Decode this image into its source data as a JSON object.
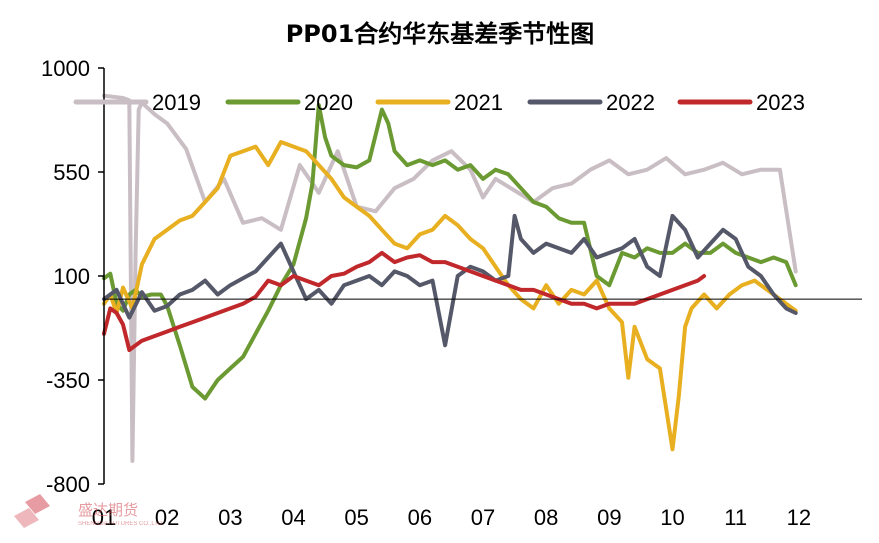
{
  "chart_data": {
    "type": "line",
    "title": "PP01合约华东基差季节性图",
    "xlabel": "",
    "ylabel": "",
    "ylim": [
      -800,
      1000
    ],
    "yticks": [
      1000,
      550,
      100,
      -350,
      -800
    ],
    "xticks": [
      "01",
      "02",
      "03",
      "04",
      "05",
      "06",
      "07",
      "08",
      "09",
      "10",
      "11",
      "12"
    ],
    "x_domain": [
      1,
      13
    ],
    "zero_line": 0,
    "legend_position": "top",
    "series": [
      {
        "name": "2019",
        "color": "#c9bec3",
        "x": [
          1.0,
          1.3,
          1.4,
          1.45,
          1.5,
          1.55,
          1.6,
          1.8,
          2.0,
          2.3,
          2.6,
          2.9,
          3.2,
          3.5,
          3.8,
          4.1,
          4.4,
          4.7,
          5.0,
          5.3,
          5.6,
          5.9,
          6.2,
          6.5,
          6.8,
          7.0,
          7.2,
          7.5,
          7.8,
          8.1,
          8.4,
          8.7,
          9.0,
          9.3,
          9.6,
          9.9,
          10.2,
          10.5,
          10.8,
          11.1,
          11.4,
          11.7,
          11.95
        ],
        "y": [
          880,
          870,
          860,
          -700,
          200,
          820,
          850,
          800,
          760,
          650,
          420,
          520,
          330,
          350,
          300,
          580,
          460,
          640,
          400,
          380,
          480,
          520,
          600,
          640,
          560,
          440,
          520,
          470,
          420,
          480,
          500,
          560,
          600,
          540,
          560,
          610,
          540,
          560,
          590,
          540,
          560,
          560,
          120
        ]
      },
      {
        "name": "2020",
        "color": "#6b9a33",
        "x": [
          1.0,
          1.1,
          1.2,
          1.3,
          1.4,
          1.5,
          1.6,
          1.75,
          1.9,
          2.0,
          2.2,
          2.4,
          2.6,
          2.8,
          3.0,
          3.2,
          3.4,
          3.6,
          3.8,
          4.0,
          4.2,
          4.3,
          4.4,
          4.5,
          4.6,
          4.8,
          5.0,
          5.2,
          5.4,
          5.5,
          5.6,
          5.8,
          6.0,
          6.2,
          6.4,
          6.6,
          6.8,
          7.0,
          7.2,
          7.4,
          7.6,
          7.8,
          8.0,
          8.2,
          8.4,
          8.6,
          8.8,
          9.0,
          9.2,
          9.4,
          9.6,
          9.8,
          10.0,
          10.2,
          10.4,
          10.6,
          10.8,
          11.0,
          11.2,
          11.4,
          11.6,
          11.8,
          11.95
        ],
        "y": [
          90,
          110,
          -20,
          -50,
          20,
          40,
          10,
          20,
          20,
          -30,
          -200,
          -380,
          -430,
          -350,
          -300,
          -250,
          -150,
          -50,
          60,
          150,
          350,
          500,
          840,
          700,
          620,
          580,
          570,
          600,
          820,
          760,
          640,
          580,
          600,
          580,
          600,
          560,
          580,
          520,
          560,
          540,
          480,
          420,
          400,
          350,
          330,
          330,
          100,
          60,
          200,
          180,
          220,
          200,
          200,
          240,
          200,
          200,
          240,
          200,
          180,
          160,
          180,
          160,
          60
        ]
      },
      {
        "name": "2021",
        "color": "#e8b020",
        "x": [
          1.0,
          1.1,
          1.2,
          1.3,
          1.45,
          1.6,
          1.8,
          2.0,
          2.2,
          2.4,
          2.6,
          2.8,
          3.0,
          3.2,
          3.4,
          3.6,
          3.8,
          4.0,
          4.2,
          4.4,
          4.6,
          4.8,
          5.0,
          5.2,
          5.4,
          5.6,
          5.8,
          6.0,
          6.2,
          6.4,
          6.6,
          6.8,
          7.0,
          7.2,
          7.4,
          7.6,
          7.8,
          8.0,
          8.2,
          8.4,
          8.6,
          8.8,
          9.0,
          9.2,
          9.3,
          9.4,
          9.6,
          9.8,
          10.0,
          10.1,
          10.2,
          10.3,
          10.5,
          10.7,
          10.9,
          11.1,
          11.3,
          11.5,
          11.7,
          11.95
        ],
        "y": [
          -20,
          20,
          -60,
          50,
          -40,
          150,
          260,
          300,
          340,
          360,
          420,
          480,
          620,
          640,
          660,
          580,
          680,
          660,
          640,
          580,
          520,
          440,
          400,
          360,
          300,
          240,
          220,
          280,
          300,
          360,
          320,
          260,
          220,
          140,
          60,
          0,
          -40,
          60,
          -20,
          40,
          20,
          80,
          -40,
          -100,
          -340,
          -120,
          -260,
          -300,
          -650,
          -420,
          -120,
          -40,
          20,
          -40,
          20,
          60,
          80,
          40,
          0,
          -50
        ]
      },
      {
        "name": "2022",
        "color": "#555868",
        "x": [
          1.0,
          1.2,
          1.4,
          1.6,
          1.8,
          2.0,
          2.2,
          2.4,
          2.6,
          2.8,
          3.0,
          3.2,
          3.4,
          3.6,
          3.8,
          4.0,
          4.2,
          4.4,
          4.6,
          4.8,
          5.0,
          5.2,
          5.4,
          5.6,
          5.8,
          6.0,
          6.2,
          6.4,
          6.6,
          6.8,
          7.0,
          7.2,
          7.4,
          7.5,
          7.6,
          7.8,
          8.0,
          8.2,
          8.4,
          8.6,
          8.8,
          9.0,
          9.2,
          9.4,
          9.6,
          9.8,
          10.0,
          10.2,
          10.4,
          10.6,
          10.8,
          11.0,
          11.2,
          11.4,
          11.6,
          11.8,
          11.95
        ],
        "y": [
          0,
          40,
          -80,
          30,
          -50,
          -30,
          20,
          40,
          80,
          20,
          60,
          90,
          120,
          180,
          240,
          120,
          0,
          40,
          -20,
          60,
          80,
          100,
          60,
          120,
          100,
          60,
          80,
          -200,
          100,
          140,
          120,
          80,
          100,
          360,
          260,
          200,
          240,
          220,
          200,
          260,
          180,
          200,
          220,
          260,
          140,
          100,
          360,
          300,
          180,
          240,
          300,
          260,
          140,
          100,
          20,
          -40,
          -60
        ]
      },
      {
        "name": "2023",
        "color": "#c0282b",
        "x": [
          1.0,
          1.1,
          1.2,
          1.3,
          1.4,
          1.6,
          1.8,
          2.0,
          2.2,
          2.4,
          2.6,
          2.8,
          3.0,
          3.2,
          3.4,
          3.6,
          3.8,
          4.0,
          4.2,
          4.4,
          4.6,
          4.8,
          5.0,
          5.2,
          5.4,
          5.6,
          5.8,
          6.0,
          6.2,
          6.4,
          6.6,
          6.8,
          7.0,
          7.2,
          7.4,
          7.6,
          7.8,
          8.0,
          8.2,
          8.4,
          8.6,
          8.8,
          9.0,
          9.2,
          9.4,
          9.6,
          9.8,
          10.0,
          10.2,
          10.4,
          10.5
        ],
        "y": [
          -150,
          -40,
          -60,
          -110,
          -220,
          -180,
          -160,
          -140,
          -120,
          -100,
          -80,
          -60,
          -40,
          -20,
          10,
          80,
          60,
          100,
          80,
          60,
          100,
          110,
          140,
          160,
          200,
          160,
          180,
          190,
          160,
          160,
          140,
          120,
          100,
          80,
          60,
          40,
          40,
          20,
          0,
          -20,
          -20,
          -40,
          -20,
          -20,
          -20,
          0,
          20,
          40,
          60,
          80,
          100
        ]
      }
    ]
  }
}
